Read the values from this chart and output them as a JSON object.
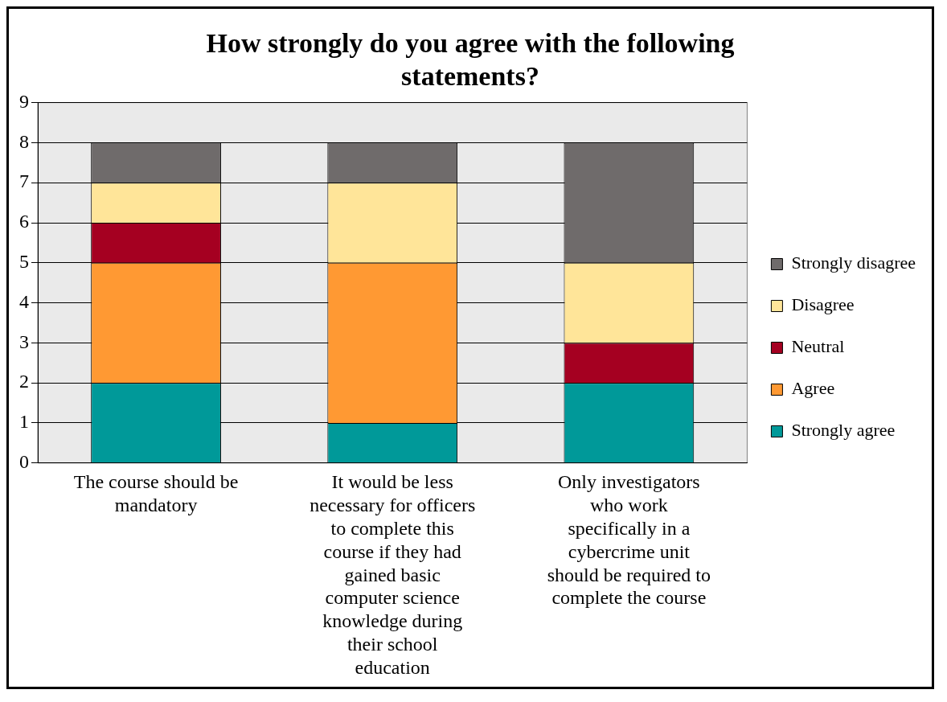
{
  "chart_data": {
    "type": "bar",
    "title": "How strongly do you agree with the following statements?",
    "categories": [
      "The course should be mandatory",
      "It would be less necessary for officers to complete this course if they had gained basic computer science knowledge during their school education",
      "Only investigators who work specifically in a cybercrime unit should be required to complete the course"
    ],
    "stacked": true,
    "ylim": [
      0,
      9
    ],
    "yticks": [
      0,
      1,
      2,
      3,
      4,
      5,
      6,
      7,
      8,
      9
    ],
    "grid": "y",
    "legend": "right",
    "series": [
      {
        "name": "Strongly agree",
        "color": "#009999",
        "values": [
          2,
          1,
          2
        ]
      },
      {
        "name": "Agree",
        "color": "#ff9933",
        "values": [
          3,
          4,
          0
        ]
      },
      {
        "name": "Neutral",
        "color": "#a50021",
        "values": [
          1,
          0,
          1
        ]
      },
      {
        "name": "Disagree",
        "color": "#ffe599",
        "values": [
          1,
          2,
          2
        ]
      },
      {
        "name": "Strongly disagree",
        "color": "#6f6b6b",
        "values": [
          1,
          1,
          3
        ]
      }
    ]
  }
}
